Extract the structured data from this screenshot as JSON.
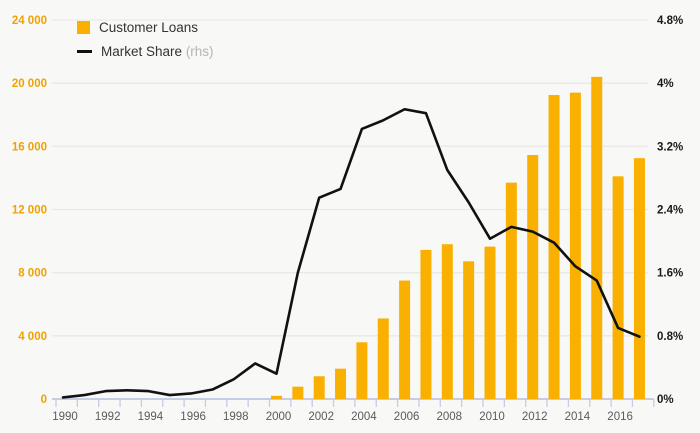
{
  "legend": {
    "bar_label": "Customer Loans",
    "line_label": "Market Share",
    "line_label_suffix": "(rhs)"
  },
  "colors": {
    "bar": "#f9b000",
    "line": "#111111",
    "left_axis_text": "#f0a202",
    "right_axis_text": "#1a1a1a",
    "x_axis_text": "#5a5a5a",
    "gridline": "#e9e9e6",
    "baseline": "#c5cce4",
    "background": "#f8f8f6"
  },
  "chart_data": {
    "type": "bar",
    "title": "",
    "x": [
      1990,
      1991,
      1992,
      1993,
      1994,
      1995,
      1996,
      1997,
      1998,
      1999,
      2000,
      2001,
      2002,
      2003,
      2004,
      2005,
      2006,
      2007,
      2008,
      2009,
      2010,
      2011,
      2012,
      2013,
      2014,
      2015,
      2016,
      2017
    ],
    "series": [
      {
        "name": "Customer Loans",
        "type": "bar",
        "axis": "left",
        "values": [
          null,
          null,
          null,
          null,
          null,
          null,
          null,
          null,
          null,
          null,
          200,
          780,
          1440,
          1920,
          3590,
          5100,
          7500,
          9440,
          9800,
          8720,
          9650,
          13700,
          15450,
          19250,
          19400,
          20400,
          14100,
          15250
        ]
      },
      {
        "name": "Market Share (rhs)",
        "type": "line",
        "axis": "right",
        "values": [
          0.02,
          0.05,
          0.1,
          0.11,
          0.1,
          0.05,
          0.07,
          0.12,
          0.25,
          0.45,
          0.32,
          1.6,
          2.55,
          2.66,
          3.42,
          3.53,
          3.67,
          3.62,
          2.9,
          2.49,
          2.03,
          2.18,
          2.12,
          1.98,
          1.68,
          1.5,
          0.9,
          0.79
        ]
      }
    ],
    "left_axis": {
      "min": 0,
      "max": 24000,
      "step": 4000,
      "tick_labels": [
        "0",
        "4 000",
        "8 000",
        "12 000",
        "16 000",
        "20 000",
        "24 000"
      ]
    },
    "right_axis": {
      "min": 0,
      "max": 4.8,
      "step": 0.8,
      "tick_labels": [
        "0%",
        "0.8%",
        "1.6%",
        "2.4%",
        "3.2%",
        "4%",
        "4.8%"
      ]
    },
    "x_axis": {
      "label_years": [
        "1990",
        "1992",
        "1994",
        "1996",
        "1998",
        "2000",
        "2002",
        "2004",
        "2006",
        "2008",
        "2010",
        "2012",
        "2014",
        "2016"
      ],
      "grid": true,
      "legend_position": "top-left"
    }
  }
}
